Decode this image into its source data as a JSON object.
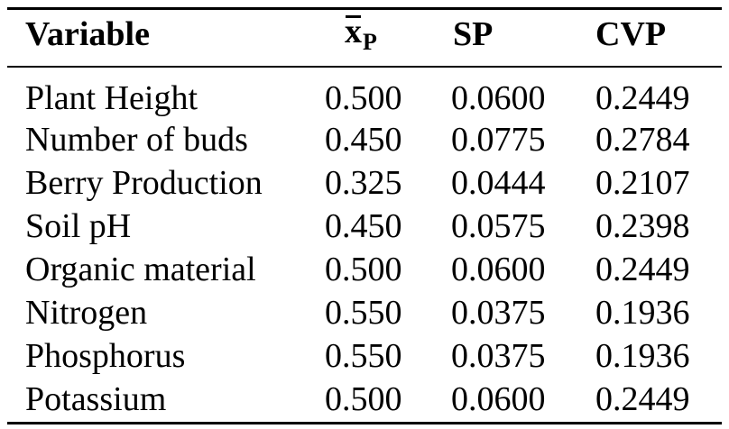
{
  "table": {
    "headers": {
      "variable": "Variable",
      "mean_base": "x",
      "mean_sub": "P",
      "sp": "SP",
      "cvp": "CVP"
    },
    "rows": [
      {
        "variable": "Plant Height",
        "mean": "0.500",
        "sp": "0.0600",
        "cvp": "0.2449"
      },
      {
        "variable": "Number of buds",
        "mean": "0.450",
        "sp": "0.0775",
        "cvp": "0.2784"
      },
      {
        "variable": "Berry Production",
        "mean": "0.325",
        "sp": "0.0444",
        "cvp": "0.2107"
      },
      {
        "variable": "Soil pH",
        "mean": "0.450",
        "sp": "0.0575",
        "cvp": "0.2398"
      },
      {
        "variable": "Organic material",
        "mean": "0.500",
        "sp": "0.0600",
        "cvp": "0.2449"
      },
      {
        "variable": "Nitrogen",
        "mean": "0.550",
        "sp": "0.0375",
        "cvp": "0.1936"
      },
      {
        "variable": "Phosphorus",
        "mean": "0.550",
        "sp": "0.0375",
        "cvp": "0.1936"
      },
      {
        "variable": "Potassium",
        "mean": "0.500",
        "sp": "0.0600",
        "cvp": "0.2449"
      }
    ]
  }
}
